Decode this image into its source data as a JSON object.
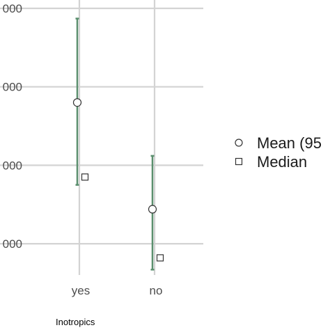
{
  "chart_data": {
    "type": "scatter",
    "title": "",
    "xlabel": "Inotropics",
    "ylabel": "",
    "categories": [
      "yes",
      "no"
    ],
    "y_ticks": [
      {
        "value": 1,
        "label": "000"
      },
      {
        "value": 2,
        "label": "000"
      },
      {
        "value": 3,
        "label": "000"
      },
      {
        "value": 4,
        "label": "000"
      }
    ],
    "ylim": [
      0.6,
      4.1
    ],
    "grid": true,
    "legend_position": "right",
    "series": [
      {
        "name": "Mean (95",
        "marker": "circle",
        "values": [
          2.8,
          1.44
        ]
      },
      {
        "name": "Median",
        "marker": "square",
        "values": [
          1.85,
          0.82
        ]
      }
    ],
    "error_bars": {
      "lower": [
        1.75,
        0.67
      ],
      "upper": [
        3.87,
        2.12
      ]
    },
    "colors": {
      "error_bar": "#5b8f6e",
      "grid": "#d3d3d3",
      "marker_stroke": "#333333",
      "marker_fill": "#ffffff"
    }
  }
}
